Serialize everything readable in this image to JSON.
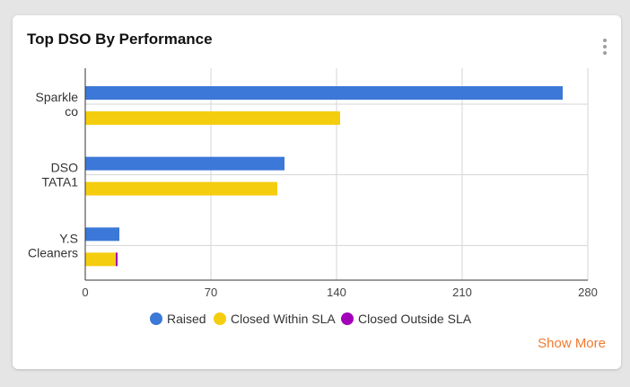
{
  "card": {
    "title": "Top DSO By Performance",
    "show_more_label": "Show More",
    "menu_icon": "kebab-menu-icon"
  },
  "chart_data": {
    "type": "bar",
    "orientation": "horizontal",
    "title": "Top DSO By Performance",
    "categories": [
      [
        "Sparkle",
        "co"
      ],
      [
        "DSO",
        "TATA1"
      ],
      [
        "Y.S",
        "Cleaners"
      ]
    ],
    "series": [
      {
        "name": "Raised",
        "color": "#3b78d8",
        "values": [
          266,
          111,
          19
        ]
      },
      {
        "name": "Closed Within SLA",
        "color": "#f5cd0f",
        "values": [
          142,
          107,
          17
        ]
      },
      {
        "name": "Closed Outside SLA",
        "color": "#a100b8",
        "values": [
          0,
          0,
          1
        ]
      }
    ],
    "xlim": [
      0,
      280
    ],
    "xticks": [
      "0",
      "70",
      "140",
      "210",
      "280"
    ],
    "grid": true,
    "legend_position": "bottom"
  }
}
